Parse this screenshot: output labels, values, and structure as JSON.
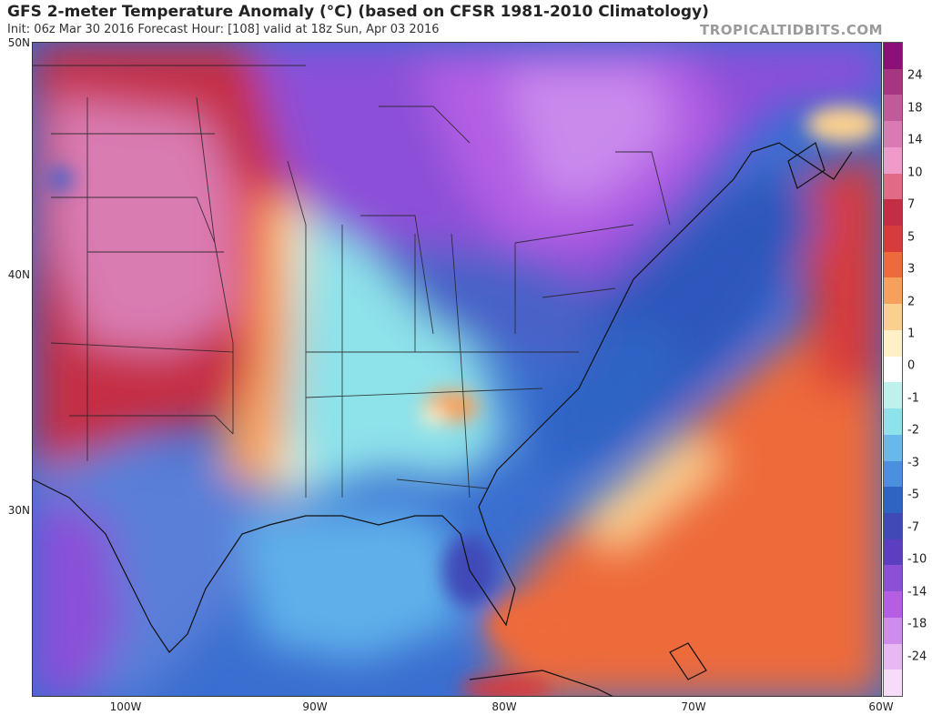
{
  "header": {
    "title": "GFS 2-meter Temperature Anomaly (°C) (based on CFSR 1981-2010 Climatology)",
    "subtitle": "Init: 06z Mar 30 2016   Forecast Hour: [108]   valid at 18z Sun, Apr 03 2016",
    "credit": "TROPICALTIDBITS.COM"
  },
  "map": {
    "latitude_labels": [
      "50N",
      "40N",
      "30N"
    ],
    "longitude_labels": [
      "100W",
      "90W",
      "80W",
      "70W",
      "60W"
    ],
    "extent": {
      "lon_min": -105,
      "lon_max": -60,
      "lat_min": 23,
      "lat_max": 50
    }
  },
  "colorbar": {
    "labels": [
      "24",
      "18",
      "14",
      "10",
      "7",
      "5",
      "3",
      "2",
      "1",
      "0",
      "-1",
      "-2",
      "-3",
      "-5",
      "-7",
      "-10",
      "-14",
      "-18",
      "-24"
    ],
    "colors": [
      "#8e0f78",
      "#a8357f",
      "#c25a99",
      "#d97bb2",
      "#ef9ac8",
      "#e36a87",
      "#c52d44",
      "#d83b3b",
      "#ee6a3b",
      "#f6a05b",
      "#fbd08f",
      "#fff0c8",
      "#ffffff",
      "#bff0ec",
      "#8ee2ea",
      "#68b8ec",
      "#4a8fe0",
      "#2f63c4",
      "#3f49b8",
      "#5b3ec2",
      "#8b4fd8",
      "#b35ee4",
      "#cf8cec",
      "#e6b9f2",
      "#f6dcf8"
    ]
  }
}
